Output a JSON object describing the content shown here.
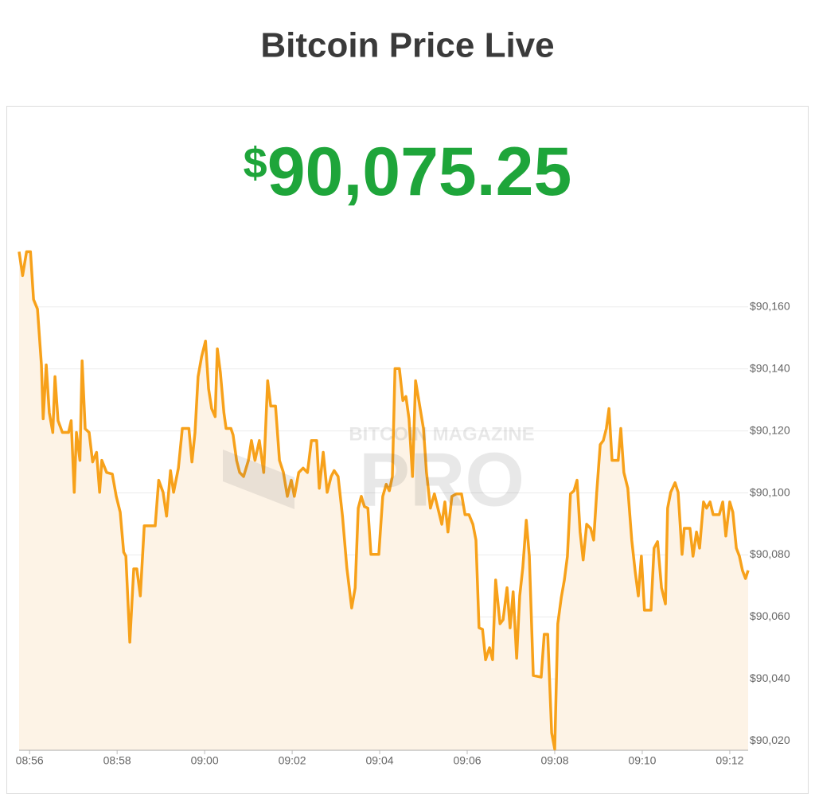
{
  "header": {
    "title": "Bitcoin Price Live"
  },
  "price": {
    "symbol": "$",
    "amount": "90,075.25",
    "color": "#1ea53a"
  },
  "watermark": {
    "top": "BITCOIN MAGAZINE",
    "main": "PRO"
  },
  "chart_data": {
    "type": "line",
    "color": "#f7a11a",
    "fill": "#fdf3e6",
    "grid": true,
    "xlim": [
      535.76,
      552.42
    ],
    "ylim": [
      90017,
      90182
    ],
    "xticks": [
      {
        "value": 536,
        "label": "08:56"
      },
      {
        "value": 538,
        "label": "08:58"
      },
      {
        "value": 540,
        "label": "09:00"
      },
      {
        "value": 542,
        "label": "09:02"
      },
      {
        "value": 544,
        "label": "09:04"
      },
      {
        "value": 546,
        "label": "09:06"
      },
      {
        "value": 548,
        "label": "09:08"
      },
      {
        "value": 550,
        "label": "09:10"
      },
      {
        "value": 552,
        "label": "09:12"
      }
    ],
    "yticks": [
      {
        "value": 90020,
        "label": "$90,020"
      },
      {
        "value": 90040,
        "label": "$90,040"
      },
      {
        "value": 90060,
        "label": "$90,060"
      },
      {
        "value": 90080,
        "label": "$90,080"
      },
      {
        "value": 90100,
        "label": "$90,100"
      },
      {
        "value": 90120,
        "label": "$90,120"
      },
      {
        "value": 90140,
        "label": "$90,140"
      },
      {
        "value": 90160,
        "label": "$90,160"
      }
    ],
    "x": [
      535.76,
      535.84,
      535.93,
      536.02,
      536.09,
      536.18,
      536.27,
      536.31,
      536.38,
      536.45,
      536.53,
      536.58,
      536.65,
      536.75,
      536.89,
      536.95,
      537.02,
      537.07,
      537.15,
      537.2,
      537.27,
      537.36,
      537.44,
      537.53,
      537.6,
      537.65,
      537.76,
      537.89,
      537.98,
      538.07,
      538.15,
      538.2,
      538.29,
      538.38,
      538.45,
      538.53,
      538.62,
      538.87,
      538.95,
      539.05,
      539.13,
      539.22,
      539.29,
      539.4,
      539.49,
      539.64,
      539.71,
      539.78,
      539.85,
      539.93,
      540.02,
      540.09,
      540.16,
      540.24,
      540.29,
      540.36,
      540.44,
      540.49,
      540.6,
      540.65,
      540.73,
      540.8,
      540.89,
      541.0,
      541.07,
      541.15,
      541.25,
      541.35,
      541.44,
      541.51,
      541.62,
      541.71,
      541.8,
      541.89,
      541.98,
      542.05,
      542.15,
      542.25,
      542.35,
      542.44,
      542.56,
      542.62,
      542.71,
      542.8,
      542.89,
      542.96,
      543.05,
      543.15,
      543.25,
      543.36,
      543.44,
      543.51,
      543.58,
      543.65,
      543.73,
      543.8,
      543.98,
      544.07,
      544.15,
      544.22,
      544.29,
      544.35,
      544.45,
      544.53,
      544.6,
      544.67,
      544.75,
      544.82,
      544.91,
      545.0,
      545.07,
      545.16,
      545.25,
      545.33,
      545.42,
      545.49,
      545.56,
      545.65,
      545.75,
      545.87,
      545.95,
      546.04,
      546.13,
      546.2,
      546.27,
      546.35,
      546.42,
      546.51,
      546.58,
      546.65,
      546.75,
      546.82,
      546.91,
      546.98,
      547.05,
      547.13,
      547.2,
      547.27,
      547.35,
      547.42,
      547.51,
      547.69,
      547.76,
      547.84,
      547.93,
      548.0,
      548.07,
      548.15,
      548.22,
      548.29,
      548.36,
      548.44,
      548.51,
      548.58,
      548.65,
      548.73,
      548.82,
      548.89,
      548.96,
      549.04,
      549.11,
      549.18,
      549.24,
      549.31,
      549.45,
      549.51,
      549.58,
      549.67,
      549.76,
      549.84,
      549.91,
      549.98,
      550.05,
      550.2,
      550.27,
      550.35,
      550.44,
      550.53,
      550.58,
      550.65,
      550.75,
      550.82,
      550.91,
      550.96,
      551.09,
      551.16,
      551.24,
      551.31,
      551.4,
      551.47,
      551.55,
      551.62,
      551.76,
      551.84,
      551.91,
      552.0,
      552.07,
      552.15,
      552.22,
      552.29,
      552.36,
      552.42
    ],
    "values": [
      90177.8,
      90170.1,
      90177.8,
      90177.8,
      90162.4,
      90159.3,
      90141.3,
      90123.9,
      90141.3,
      90125.9,
      90119.5,
      90137.5,
      90123.3,
      90119.5,
      90119.5,
      90123.3,
      90100.2,
      90119.5,
      90110.5,
      90142.6,
      90120.7,
      90119.5,
      90110.0,
      90113.1,
      90100.2,
      90110.5,
      90106.6,
      90106.1,
      90098.9,
      90093.8,
      90080.9,
      90079.6,
      90051.9,
      90075.5,
      90075.5,
      90066.8,
      90089.4,
      90089.4,
      90104.1,
      90100.2,
      90092.5,
      90107.2,
      90100.2,
      90108.0,
      90120.8,
      90120.8,
      90110.0,
      90119.5,
      90137.5,
      90143.9,
      90149.0,
      90133.6,
      90127.2,
      90124.6,
      90146.5,
      90138.8,
      90125.9,
      90120.8,
      90120.8,
      90118.7,
      90110.5,
      90106.6,
      90105.3,
      90110.5,
      90116.9,
      90110.5,
      90116.9,
      90106.6,
      90136.2,
      90128.0,
      90128.0,
      90110.5,
      90106.6,
      90098.9,
      90104.1,
      90098.9,
      90106.6,
      90108.0,
      90106.6,
      90116.9,
      90116.9,
      90101.5,
      90113.1,
      90100.2,
      90105.3,
      90107.2,
      90105.3,
      90092.5,
      90075.8,
      90062.9,
      90069.4,
      90095.1,
      90098.9,
      90095.6,
      90095.1,
      90080.2,
      90080.2,
      90098.9,
      90102.8,
      90100.7,
      90105.3,
      90140.1,
      90140.1,
      90129.8,
      90131.1,
      90123.9,
      90105.3,
      90136.2,
      90128.5,
      90120.8,
      90106.6,
      90095.1,
      90099.7,
      90095.1,
      90089.9,
      90097.1,
      90087.4,
      90098.9,
      90099.7,
      90099.7,
      90093.0,
      90093.0,
      90089.9,
      90084.8,
      90056.5,
      90056.0,
      90046.2,
      90050.1,
      90046.2,
      90071.9,
      90057.8,
      90059.1,
      90069.4,
      90056.5,
      90068.1,
      90046.7,
      90066.8,
      90075.8,
      90091.2,
      90079.6,
      90041.1,
      90040.6,
      90054.4,
      90054.4,
      90022.6,
      90017.4,
      90057.8,
      90066.3,
      90071.9,
      90079.6,
      90099.7,
      90100.7,
      90104.1,
      90087.4,
      90078.4,
      90089.9,
      90088.6,
      90084.8,
      90100.2,
      90115.6,
      90116.9,
      90120.8,
      90127.2,
      90110.5,
      90110.5,
      90120.8,
      90106.6,
      90101.5,
      90084.8,
      90074.5,
      90066.8,
      90079.6,
      90062.2,
      90062.2,
      90082.2,
      90084.3,
      90069.4,
      90064.2,
      90095.1,
      90100.2,
      90103.3,
      90100.2,
      90080.2,
      90088.6,
      90088.6,
      90079.6,
      90087.4,
      90082.2,
      90097.1,
      90095.1,
      90097.1,
      90093.0,
      90093.0,
      90097.1,
      90086.1,
      90097.1,
      90093.8,
      90082.2,
      90079.6,
      90075.0,
      90072.4,
      90075.0
    ]
  }
}
